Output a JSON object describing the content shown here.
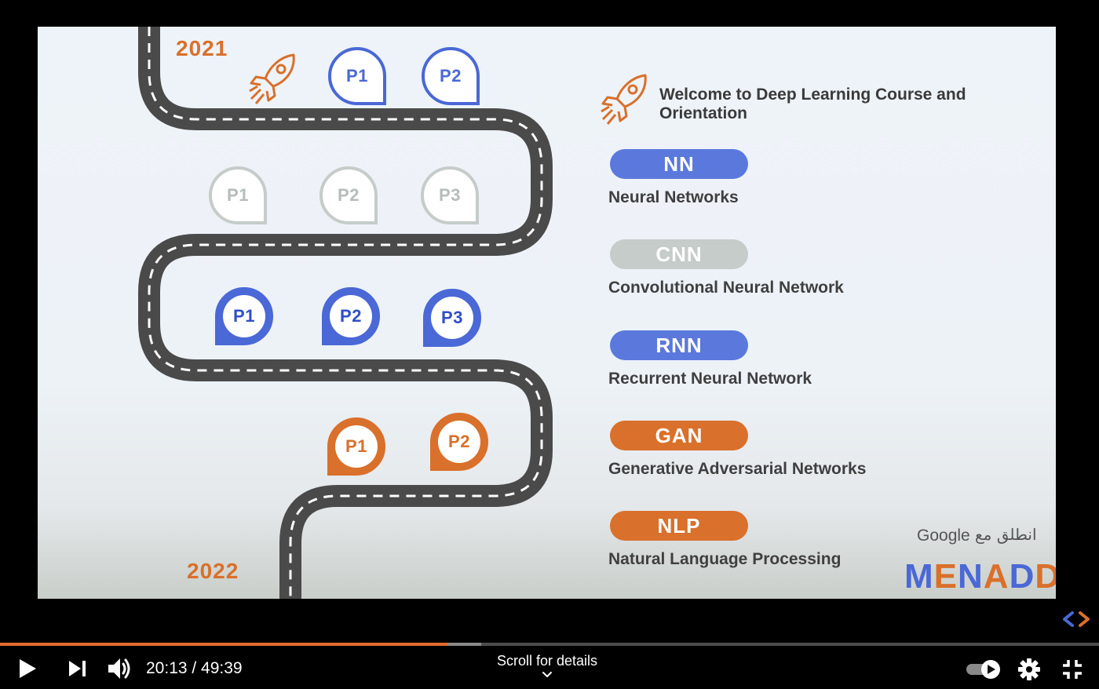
{
  "slide": {
    "year_top": "2021",
    "year_bottom": "2022",
    "welcome_text": "Welcome to Deep Learning Course and Orientation",
    "pins": {
      "row1": [
        "P1",
        "P2"
      ],
      "row2": [
        "P1",
        "P2",
        "P3"
      ],
      "row3": [
        "P1",
        "P2",
        "P3"
      ],
      "row4": [
        "P1",
        "P2"
      ]
    },
    "topics": [
      {
        "abbr": "NN",
        "name": "Neural Networks",
        "color": "#5b78dc"
      },
      {
        "abbr": "CNN",
        "name": "Convolutional Neural Network",
        "color": "#c5ccc9"
      },
      {
        "abbr": "RNN",
        "name": "Recurrent Neural Network",
        "color": "#5b78dc"
      },
      {
        "abbr": "GAN",
        "name": "Generative Adversarial Networks",
        "color": "#d9702b"
      },
      {
        "abbr": "NLP",
        "name": "Natural Language Processing",
        "color": "#d9702b"
      }
    ],
    "logo": {
      "google": "Google",
      "arabic": "انطلق مع",
      "brand": "MENADD",
      "brand_colors": [
        "#4a68d6",
        "#d9702b",
        "#4a68d6",
        "#d9702b",
        "#4a68d6",
        "#d9702b"
      ]
    },
    "accent_blue": "#4a68d6",
    "accent_orange": "#d9702b"
  },
  "player": {
    "current_time": "20:13",
    "total_time": "49:39",
    "time_display": "20:13 / 49:39",
    "played_fraction": 0.407,
    "buffered_fraction": 0.438,
    "scroll_label": "Scroll for details",
    "icons": [
      "play-icon",
      "next-icon",
      "volume-icon",
      "autoplay-toggle-icon",
      "settings-gear-icon",
      "exit-fullscreen-icon",
      "chevron-down-icon"
    ],
    "progress_color": "#e26b2f"
  }
}
